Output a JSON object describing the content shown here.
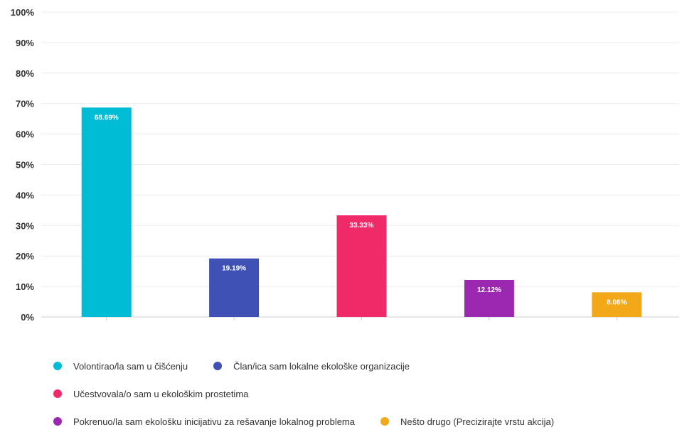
{
  "chart_data": {
    "type": "bar",
    "categories": [
      "Volontirao/la sam u čišćenju",
      "Član/ica sam lokalne ekološke organizacije",
      "Učestvovala/o sam u ekološkim prostetima",
      "Pokrenuo/la sam ekološku inicijativu za rešavanje lokalnog problema",
      "Nešto drugo (Precizirajte vrstu akcija)"
    ],
    "values": [
      68.69,
      19.19,
      33.33,
      12.12,
      8.08
    ],
    "data_labels": [
      "68.69%",
      "19.19%",
      "33.33%",
      "12.12%",
      "8.08%"
    ],
    "colors": [
      "#00bcd4",
      "#3f51b5",
      "#f02a68",
      "#9c27b0",
      "#f2a818"
    ],
    "yticks": [
      "0%",
      "10%",
      "20%",
      "30%",
      "40%",
      "50%",
      "60%",
      "70%",
      "80%",
      "90%",
      "100%"
    ],
    "ylim": [
      0,
      100
    ],
    "grid": true,
    "legend_position": "bottom"
  }
}
